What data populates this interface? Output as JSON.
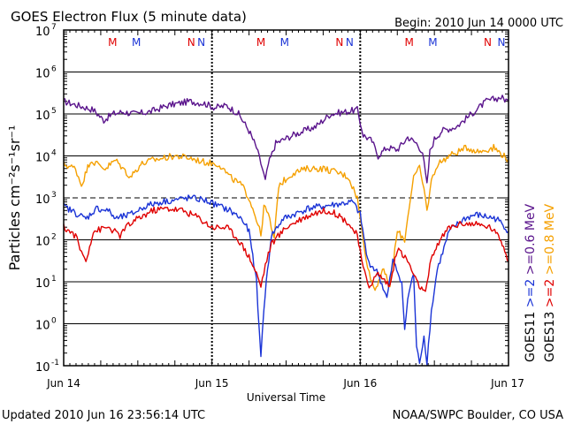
{
  "chart_data": {
    "type": "line",
    "title": "GOES Electron Flux (5 minute data)",
    "begin": "Begin: 2010 Jun 14 0000 UTC",
    "xlabel": "Universal Time",
    "ylabel": "Particles cm⁻²s⁻¹sr⁻¹",
    "x_unit": "days since 2010 Jun 14 00:00 UTC",
    "xlim": [
      0,
      3
    ],
    "ylim_log10": [
      -1,
      7
    ],
    "x_ticks": [
      {
        "x": 0,
        "label": "Jun 14"
      },
      {
        "x": 1,
        "label": "Jun 15"
      },
      {
        "x": 2,
        "label": "Jun 16"
      },
      {
        "x": 3,
        "label": "Jun 17"
      }
    ],
    "y_ticks": [
      {
        "e": 7,
        "base": "10",
        "exp": "7"
      },
      {
        "e": 6,
        "base": "10",
        "exp": "6"
      },
      {
        "e": 5,
        "base": "10",
        "exp": "5"
      },
      {
        "e": 4,
        "base": "10",
        "exp": "4"
      },
      {
        "e": 3,
        "base": "10",
        "exp": "3"
      },
      {
        "e": 2,
        "base": "10",
        "exp": "2"
      },
      {
        "e": 1,
        "base": "10",
        "exp": "1"
      },
      {
        "e": 0,
        "base": "10",
        "exp": "0"
      },
      {
        "e": -1,
        "base": "10",
        "exp": "-1"
      }
    ],
    "threshold_line_log10": 3,
    "markers": [
      {
        "label": "M",
        "x": 0.33,
        "color": "#e00000"
      },
      {
        "label": "M",
        "x": 0.49,
        "color": "#1a33d6"
      },
      {
        "label": "N",
        "x": 0.86,
        "color": "#e00000"
      },
      {
        "label": "N",
        "x": 1.0,
        "color": "#1a33d6"
      },
      {
        "label": "M",
        "x": 1.33,
        "color": "#e00000"
      },
      {
        "label": "M",
        "x": 1.49,
        "color": "#1a33d6"
      },
      {
        "label": "N",
        "x": 1.86,
        "color": "#e00000"
      },
      {
        "label": "N",
        "x": 2.0,
        "color": "#1a33d6"
      },
      {
        "label": "M",
        "x": 2.33,
        "color": "#e00000"
      },
      {
        "label": "M",
        "x": 2.49,
        "color": "#1a33d6"
      },
      {
        "label": "N",
        "x": 2.86,
        "color": "#e00000"
      },
      {
        "label": "N",
        "x": 3.0,
        "color": "#1a33d6"
      }
    ],
    "legend": [
      {
        "label": "GOES11",
        "color": "#000000"
      },
      {
        "label": ">=2",
        "color": "#1a33d6"
      },
      {
        "label": ">=0.6 MeV",
        "color": "#5a148c"
      },
      {
        "label": "GOES13",
        "color": "#000000"
      },
      {
        "label": ">=2",
        "color": "#e00000"
      },
      {
        "label": ">=0.8 MeV",
        "color": "#f5a000"
      }
    ],
    "series": [
      {
        "name": "GOES11 >=0.6 MeV",
        "color": "#5a148c",
        "points": [
          [
            0,
            5.3
          ],
          [
            0.1,
            5.2
          ],
          [
            0.2,
            5.1
          ],
          [
            0.27,
            4.85
          ],
          [
            0.33,
            5.0
          ],
          [
            0.4,
            5.05
          ],
          [
            0.48,
            5.0
          ],
          [
            0.58,
            5.05
          ],
          [
            0.7,
            5.2
          ],
          [
            0.85,
            5.3
          ],
          [
            0.95,
            5.25
          ],
          [
            1.02,
            5.15
          ],
          [
            1.1,
            5.2
          ],
          [
            1.18,
            5.0
          ],
          [
            1.25,
            4.6
          ],
          [
            1.3,
            4.2
          ],
          [
            1.34,
            3.7
          ],
          [
            1.36,
            3.4
          ],
          [
            1.38,
            3.8
          ],
          [
            1.43,
            4.3
          ],
          [
            1.55,
            4.5
          ],
          [
            1.7,
            4.7
          ],
          [
            1.8,
            5.0
          ],
          [
            1.9,
            5.05
          ],
          [
            1.98,
            5.1
          ],
          [
            2.02,
            4.5
          ],
          [
            2.08,
            4.35
          ],
          [
            2.12,
            4.0
          ],
          [
            2.18,
            4.2
          ],
          [
            2.25,
            4.15
          ],
          [
            2.3,
            4.35
          ],
          [
            2.32,
            4.45
          ],
          [
            2.38,
            4.3
          ],
          [
            2.42,
            4.1
          ],
          [
            2.45,
            3.3
          ],
          [
            2.47,
            4.1
          ],
          [
            2.5,
            4.4
          ],
          [
            2.55,
            4.6
          ],
          [
            2.65,
            4.7
          ],
          [
            2.75,
            5.0
          ],
          [
            2.85,
            5.3
          ],
          [
            2.95,
            5.4
          ],
          [
            3.0,
            5.3
          ]
        ]
      },
      {
        "name": "GOES13 >=0.8 MeV",
        "color": "#f5a000",
        "points": [
          [
            0,
            3.8
          ],
          [
            0.08,
            3.7
          ],
          [
            0.12,
            3.3
          ],
          [
            0.18,
            3.9
          ],
          [
            0.28,
            3.7
          ],
          [
            0.35,
            3.9
          ],
          [
            0.45,
            3.5
          ],
          [
            0.52,
            3.8
          ],
          [
            0.6,
            3.9
          ],
          [
            0.75,
            4.0
          ],
          [
            0.85,
            3.95
          ],
          [
            0.95,
            3.85
          ],
          [
            1.05,
            3.8
          ],
          [
            1.12,
            3.5
          ],
          [
            1.2,
            3.3
          ],
          [
            1.25,
            3.0
          ],
          [
            1.3,
            2.5
          ],
          [
            1.33,
            2.1
          ],
          [
            1.35,
            2.8
          ],
          [
            1.38,
            2.6
          ],
          [
            1.42,
            2.0
          ],
          [
            1.45,
            3.3
          ],
          [
            1.55,
            3.6
          ],
          [
            1.65,
            3.7
          ],
          [
            1.75,
            3.7
          ],
          [
            1.85,
            3.6
          ],
          [
            1.92,
            3.5
          ],
          [
            1.98,
            3.0
          ],
          [
            2.02,
            2.0
          ],
          [
            2.06,
            1.2
          ],
          [
            2.1,
            0.8
          ],
          [
            2.15,
            1.3
          ],
          [
            2.2,
            0.9
          ],
          [
            2.25,
            2.2
          ],
          [
            2.3,
            2.0
          ],
          [
            2.33,
            2.8
          ],
          [
            2.36,
            3.5
          ],
          [
            2.4,
            3.7
          ],
          [
            2.43,
            3.2
          ],
          [
            2.45,
            2.7
          ],
          [
            2.48,
            3.4
          ],
          [
            2.52,
            3.8
          ],
          [
            2.6,
            4.0
          ],
          [
            2.72,
            4.2
          ],
          [
            2.8,
            4.1
          ],
          [
            2.9,
            4.2
          ],
          [
            2.97,
            4.0
          ],
          [
            3.0,
            3.9
          ]
        ]
      },
      {
        "name": "GOES11 >=2 MeV",
        "color": "#1a33d6",
        "points": [
          [
            0,
            2.8
          ],
          [
            0.05,
            2.7
          ],
          [
            0.1,
            2.6
          ],
          [
            0.15,
            2.5
          ],
          [
            0.22,
            2.75
          ],
          [
            0.3,
            2.7
          ],
          [
            0.35,
            2.5
          ],
          [
            0.45,
            2.6
          ],
          [
            0.55,
            2.8
          ],
          [
            0.65,
            2.9
          ],
          [
            0.75,
            2.95
          ],
          [
            0.85,
            3.0
          ],
          [
            0.95,
            2.95
          ],
          [
            1.05,
            2.8
          ],
          [
            1.12,
            2.7
          ],
          [
            1.2,
            2.5
          ],
          [
            1.25,
            2.2
          ],
          [
            1.3,
            1.0
          ],
          [
            1.33,
            -0.8
          ],
          [
            1.35,
            0.4
          ],
          [
            1.4,
            2.1
          ],
          [
            1.48,
            2.5
          ],
          [
            1.55,
            2.6
          ],
          [
            1.65,
            2.75
          ],
          [
            1.75,
            2.8
          ],
          [
            1.85,
            2.85
          ],
          [
            1.95,
            2.9
          ],
          [
            2.0,
            2.6
          ],
          [
            2.05,
            1.5
          ],
          [
            2.12,
            1.2
          ],
          [
            2.18,
            0.6
          ],
          [
            2.22,
            1.5
          ],
          [
            2.28,
            1.0
          ],
          [
            2.3,
            -0.2
          ],
          [
            2.32,
            0.6
          ],
          [
            2.36,
            1.2
          ],
          [
            2.38,
            -0.6
          ],
          [
            2.4,
            -0.9
          ],
          [
            2.43,
            -0.3
          ],
          [
            2.45,
            -0.9
          ],
          [
            2.48,
            0.3
          ],
          [
            2.52,
            1.3
          ],
          [
            2.6,
            2.2
          ],
          [
            2.7,
            2.5
          ],
          [
            2.78,
            2.6
          ],
          [
            2.85,
            2.55
          ],
          [
            2.92,
            2.5
          ],
          [
            2.98,
            2.3
          ],
          [
            3.0,
            2.2
          ]
        ]
      },
      {
        "name": "GOES13 >=2 MeV",
        "color": "#e00000",
        "points": [
          [
            0,
            2.3
          ],
          [
            0.08,
            2.1
          ],
          [
            0.12,
            1.7
          ],
          [
            0.15,
            1.5
          ],
          [
            0.2,
            2.2
          ],
          [
            0.3,
            2.3
          ],
          [
            0.38,
            2.1
          ],
          [
            0.42,
            2.3
          ],
          [
            0.5,
            2.5
          ],
          [
            0.6,
            2.7
          ],
          [
            0.7,
            2.75
          ],
          [
            0.8,
            2.7
          ],
          [
            0.9,
            2.55
          ],
          [
            1.0,
            2.3
          ],
          [
            1.05,
            2.3
          ],
          [
            1.1,
            2.3
          ],
          [
            1.18,
            2.0
          ],
          [
            1.25,
            1.6
          ],
          [
            1.3,
            1.2
          ],
          [
            1.33,
            0.9
          ],
          [
            1.36,
            1.4
          ],
          [
            1.4,
            1.9
          ],
          [
            1.5,
            2.3
          ],
          [
            1.6,
            2.5
          ],
          [
            1.7,
            2.65
          ],
          [
            1.78,
            2.7
          ],
          [
            1.85,
            2.6
          ],
          [
            1.92,
            2.4
          ],
          [
            1.98,
            2.1
          ],
          [
            2.02,
            1.3
          ],
          [
            2.06,
            0.9
          ],
          [
            2.12,
            1.2
          ],
          [
            2.2,
            0.9
          ],
          [
            2.25,
            1.8
          ],
          [
            2.32,
            1.5
          ],
          [
            2.38,
            1.0
          ],
          [
            2.44,
            0.7
          ],
          [
            2.47,
            1.4
          ],
          [
            2.52,
            1.9
          ],
          [
            2.6,
            2.3
          ],
          [
            2.7,
            2.4
          ],
          [
            2.8,
            2.35
          ],
          [
            2.88,
            2.3
          ],
          [
            2.95,
            2.0
          ],
          [
            3.0,
            1.5
          ]
        ]
      }
    ]
  },
  "footer": {
    "updated": "Updated 2010 Jun 16 23:56:14 UTC",
    "credit": "NOAA/SWPC Boulder, CO USA"
  }
}
